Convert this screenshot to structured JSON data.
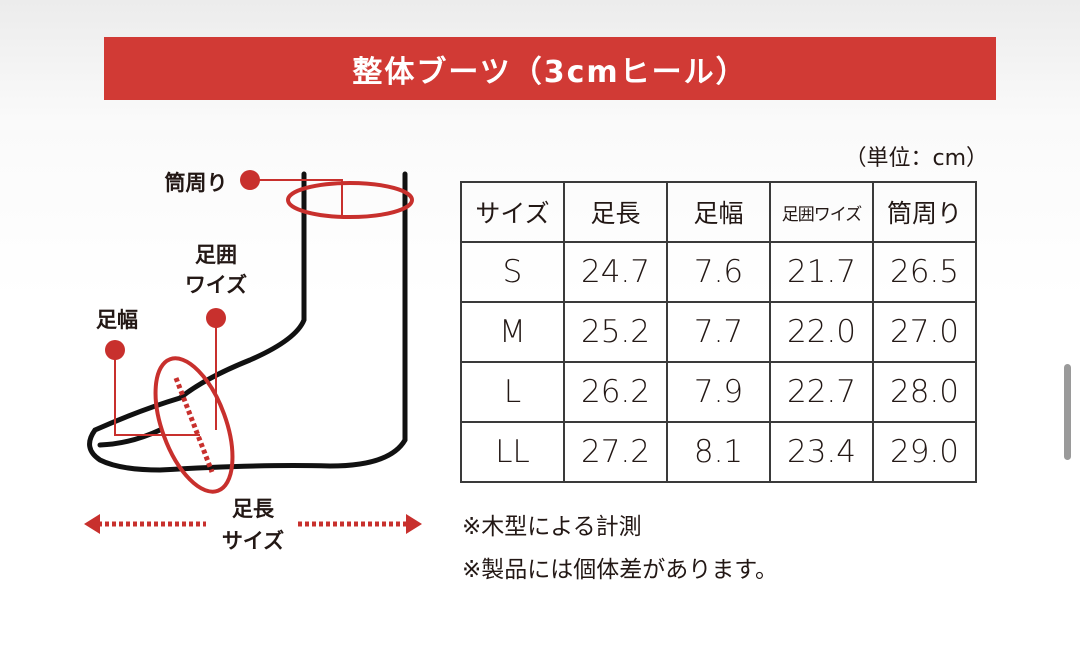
{
  "header": {
    "title": "整体ブーツ（3cmヒール）"
  },
  "diagram": {
    "labels": [
      {
        "lines": [
          "筒周り"
        ]
      },
      {
        "lines": [
          "足囲",
          "ワイズ"
        ]
      },
      {
        "lines": [
          "足幅"
        ]
      },
      {
        "lines": [
          "足長",
          "サイズ"
        ]
      }
    ]
  },
  "unit_note": "（単位：cm）",
  "table": {
    "columns": [
      "サイズ",
      "足長",
      "足幅",
      "足囲ワイズ",
      "筒周り"
    ],
    "rows": [
      [
        "S",
        "24.7",
        "7.6",
        "21.7",
        "26.5"
      ],
      [
        "M",
        "25.2",
        "7.7",
        "22.0",
        "27.0"
      ],
      [
        "L",
        "26.2",
        "7.9",
        "22.7",
        "28.0"
      ],
      [
        "LL",
        "27.2",
        "8.1",
        "23.4",
        "29.0"
      ]
    ]
  },
  "notes": [
    "※木型による計測",
    "※製品には個体差があります。"
  ]
}
